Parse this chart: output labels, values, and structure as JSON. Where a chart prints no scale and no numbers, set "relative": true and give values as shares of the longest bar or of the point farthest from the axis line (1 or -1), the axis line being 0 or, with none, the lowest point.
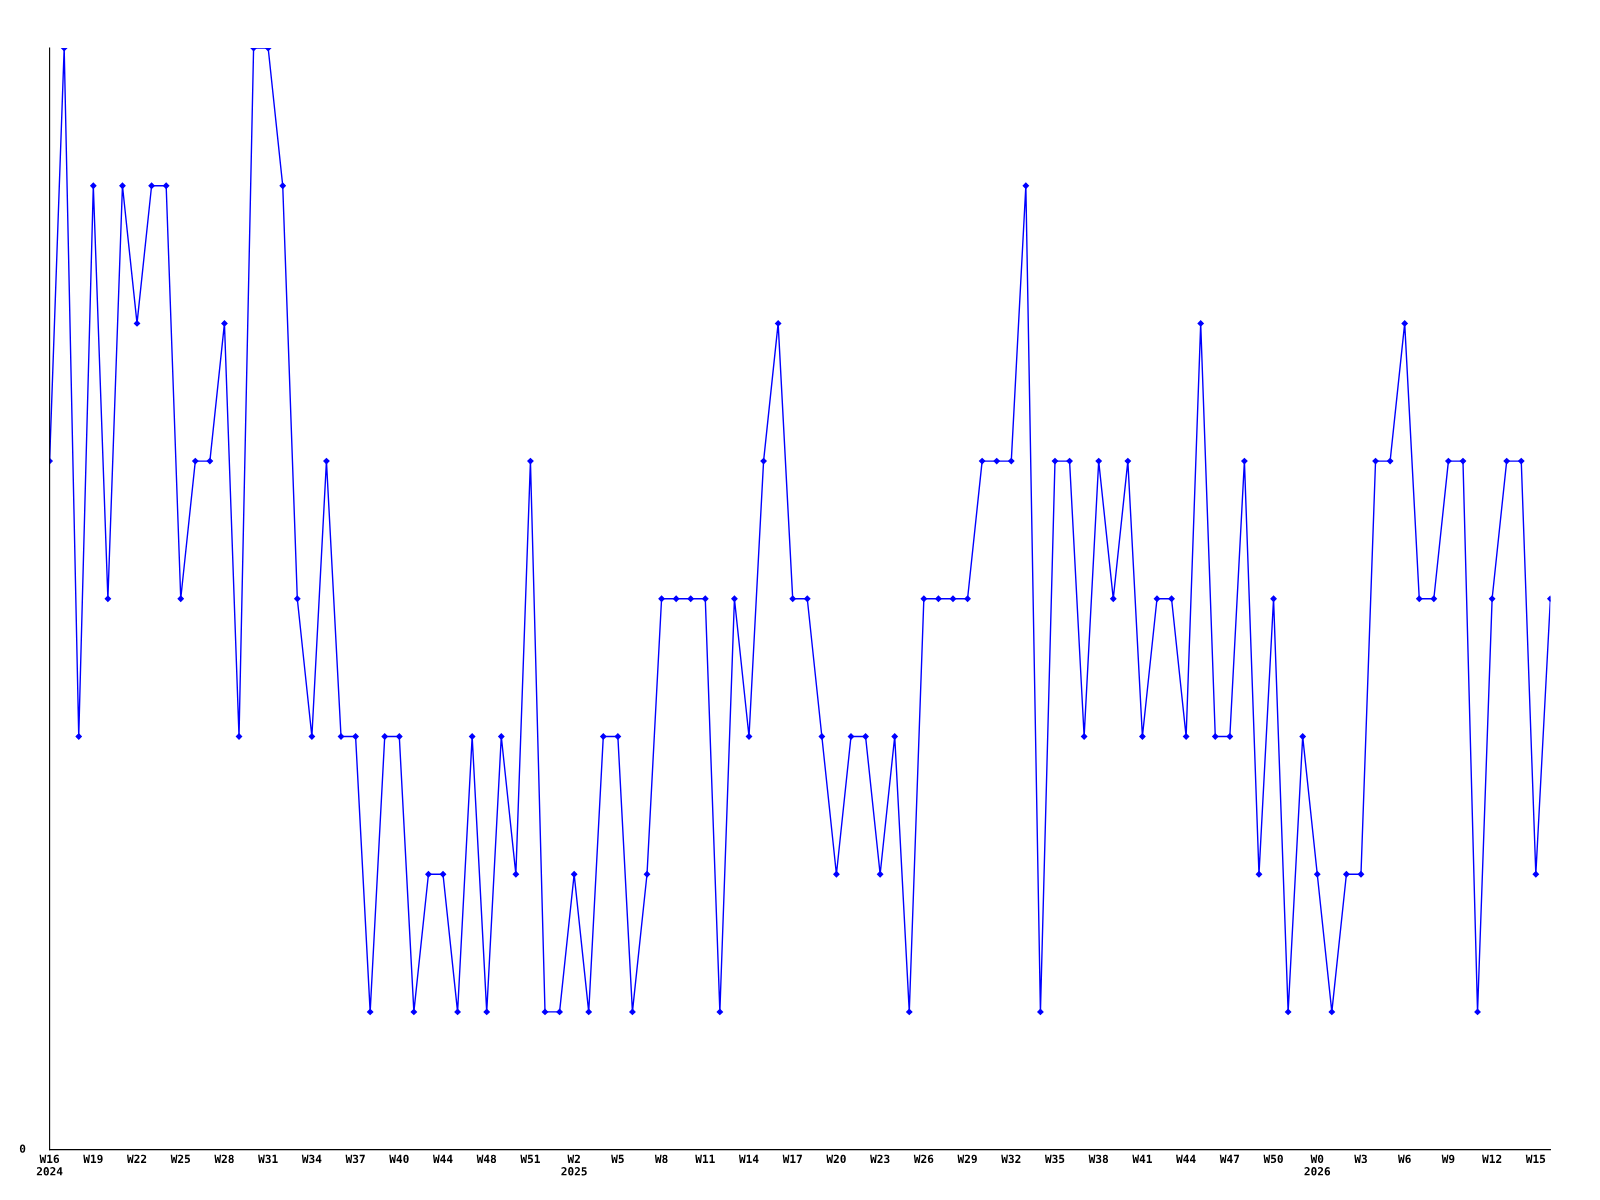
{
  "chart_data": {
    "type": "line",
    "relative": true,
    "marker": "diamond",
    "line_style": "solid",
    "grid": false,
    "legend": false,
    "annotations": [
      "0"
    ],
    "categories": [
      "W16\n2024",
      null,
      null,
      "W19",
      null,
      null,
      "W22",
      null,
      null,
      "W25",
      null,
      null,
      "W28",
      null,
      null,
      "W31",
      null,
      null,
      "W34",
      null,
      null,
      "W37",
      null,
      null,
      "W40",
      null,
      null,
      "W44",
      null,
      null,
      "W48",
      null,
      null,
      "W51",
      null,
      null,
      "W2\n2025",
      null,
      null,
      "W5",
      null,
      null,
      "W8",
      null,
      null,
      "W11",
      null,
      null,
      "W14",
      null,
      null,
      "W17",
      null,
      null,
      "W20",
      null,
      null,
      "W23",
      null,
      null,
      "W26",
      null,
      null,
      "W29",
      null,
      null,
      "W32",
      null,
      null,
      "W35",
      null,
      null,
      "W38",
      null,
      null,
      "W41",
      null,
      null,
      "W44",
      null,
      null,
      "W47",
      null,
      null,
      "W50",
      null,
      null,
      "W0\n2026",
      null,
      null,
      "W3",
      null,
      null,
      "W6",
      null,
      null,
      "W9",
      null,
      null,
      "W12",
      null,
      null,
      "W15",
      null
    ],
    "series": [
      {
        "color": "#0000ff",
        "values": [
          0.625,
          1,
          0.375,
          0.875,
          0.5,
          0.875,
          0.75,
          0.875,
          0.875,
          0.5,
          0.625,
          0.625,
          0.75,
          0.375,
          1,
          1,
          0.875,
          0.5,
          0.375,
          0.625,
          0.375,
          0.375,
          0.125,
          0.375,
          0.375,
          0.125,
          0.25,
          0.25,
          0.125,
          0.375,
          0.125,
          0.375,
          0.25,
          0.625,
          0.125,
          0.125,
          0.25,
          0.125,
          0.375,
          0.375,
          0.125,
          0.25,
          0.5,
          0.5,
          0.5,
          0.5,
          0.125,
          0.5,
          0.375,
          0.625,
          0.75,
          0.5,
          0.5,
          0.375,
          0.25,
          0.375,
          0.375,
          0.25,
          0.375,
          0.125,
          0.5,
          0.5,
          0.5,
          0.5,
          0.625,
          0.625,
          0.625,
          0.875,
          0.125,
          0.625,
          0.625,
          0.375,
          0.625,
          0.5,
          0.625,
          0.375,
          0.5,
          0.5,
          0.375,
          0.75,
          0.375,
          0.375,
          0.625,
          0.25,
          0.5,
          0.125,
          0.375,
          0.25,
          0.125,
          0.25,
          0.25,
          0.625,
          0.625,
          0.75,
          0.5,
          0.5,
          0.625,
          0.625,
          0.125,
          0.5,
          0.625,
          0.625,
          0.25,
          0.5
        ]
      }
    ]
  }
}
